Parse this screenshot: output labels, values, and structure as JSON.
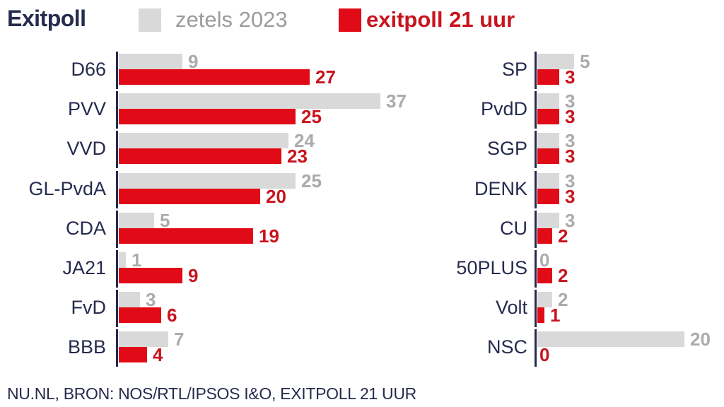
{
  "title": "Exitpoll",
  "legend": {
    "zetels": {
      "label": "zetels 2023"
    },
    "exitpoll": {
      "label": "exitpoll 21 uur"
    }
  },
  "source": "NU.NL, BRON: NOS/RTL/IPSOS I&O, EXITPOLL 21 UUR",
  "colors": {
    "navy": "#262b4e",
    "gray_bar": "#d9d9d9",
    "gray_text": "#ababab",
    "red_bar": "#e10b17",
    "red_text": "#c8141e"
  },
  "chart_data": {
    "type": "bar",
    "orientation": "horizontal",
    "title": "Exitpoll",
    "legend_entries": [
      "zetels 2023",
      "exitpoll 21 uur"
    ],
    "legend_position": "top",
    "grid": false,
    "unit": "zetels (seats)",
    "groups": [
      {
        "column": "left",
        "categories": [
          "D66",
          "PVV",
          "VVD",
          "GL-PvdA",
          "CDA",
          "JA21",
          "FvD",
          "BBB"
        ],
        "series": [
          {
            "name": "zetels 2023",
            "values": [
              9,
              37,
              24,
              25,
              5,
              1,
              3,
              7
            ]
          },
          {
            "name": "exitpoll 21 uur",
            "values": [
              27,
              25,
              23,
              20,
              19,
              9,
              6,
              4
            ]
          }
        ]
      },
      {
        "column": "right",
        "categories": [
          "SP",
          "PvdD",
          "SGP",
          "DENK",
          "CU",
          "50PLUS",
          "Volt",
          "NSC"
        ],
        "series": [
          {
            "name": "zetels 2023",
            "values": [
              5,
              3,
              3,
              3,
              3,
              0,
              2,
              20
            ]
          },
          {
            "name": "exitpoll 21 uur",
            "values": [
              3,
              3,
              3,
              3,
              2,
              2,
              1,
              0
            ]
          }
        ]
      }
    ]
  }
}
